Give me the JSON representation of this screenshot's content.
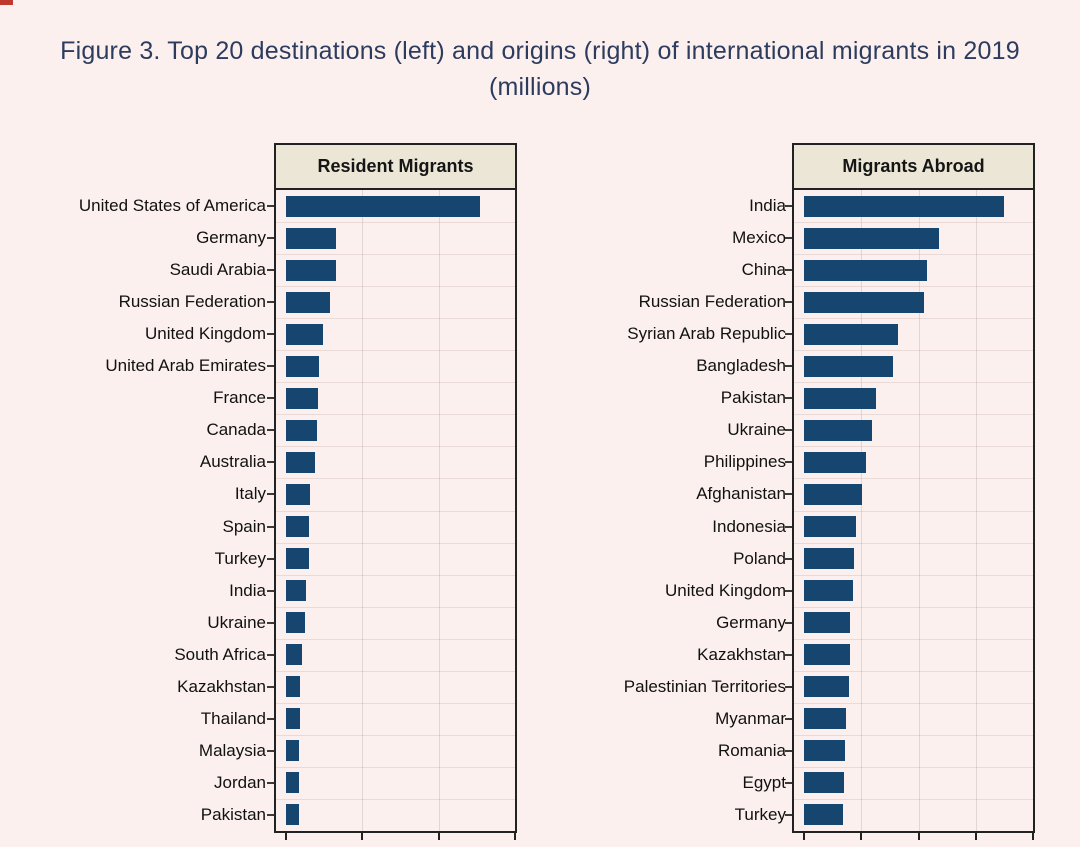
{
  "page": {
    "corner_mark": "red-smudge"
  },
  "title": {
    "line1": "Figure 3. Top 20 destinations (left) and origins (right) of international migrants in 2019",
    "line2": "(millions)"
  },
  "colors": {
    "background": "#fbf0ee",
    "title_text": "#2d3c5e",
    "bar": "#164570",
    "header_fill": "#ebe6d5",
    "border": "#222222",
    "label_text": "#111111",
    "corner_mark": "#bf3a2d"
  },
  "chart_data": [
    {
      "type": "bar",
      "orientation": "horizontal",
      "panel_title": "Resident Migrants",
      "unit": "millions",
      "categories": [
        "United States of America",
        "Germany",
        "Saudi Arabia",
        "Russian Federation",
        "United Kingdom",
        "United Arab Emirates",
        "France",
        "Canada",
        "Australia",
        "Italy",
        "Spain",
        "Turkey",
        "India",
        "Ukraine",
        "South Africa",
        "Kazakhstan",
        "Thailand",
        "Malaysia",
        "Jordan",
        "Pakistan"
      ],
      "values": [
        50.7,
        13.1,
        13.1,
        11.6,
        9.6,
        8.6,
        8.3,
        8.0,
        7.5,
        6.3,
        6.1,
        5.9,
        5.2,
        5.0,
        4.2,
        3.7,
        3.6,
        3.4,
        3.3,
        3.3
      ],
      "xlim": [
        0,
        60
      ],
      "xticks": [
        0,
        20,
        40,
        60
      ],
      "xtick_labels_visible": false,
      "grid": "on",
      "legend": "none"
    },
    {
      "type": "bar",
      "orientation": "horizontal",
      "panel_title": "Migrants Abroad",
      "unit": "millions",
      "categories": [
        "India",
        "Mexico",
        "China",
        "Russian Federation",
        "Syrian Arab Republic",
        "Bangladesh",
        "Pakistan",
        "Ukraine",
        "Philippines",
        "Afghanistan",
        "Indonesia",
        "Poland",
        "United Kingdom",
        "Germany",
        "Kazakhstan",
        "Palestinian Territories",
        "Myanmar",
        "Romania",
        "Egypt",
        "Turkey"
      ],
      "values": [
        17.5,
        11.8,
        10.7,
        10.5,
        8.2,
        7.8,
        6.3,
        5.9,
        5.4,
        5.1,
        4.5,
        4.4,
        4.3,
        4.0,
        4.0,
        3.9,
        3.7,
        3.6,
        3.5,
        3.4
      ],
      "xlim": [
        0,
        20
      ],
      "xticks": [
        0,
        5,
        10,
        15,
        20
      ],
      "xtick_labels_visible": false,
      "grid": "on",
      "legend": "none"
    }
  ]
}
